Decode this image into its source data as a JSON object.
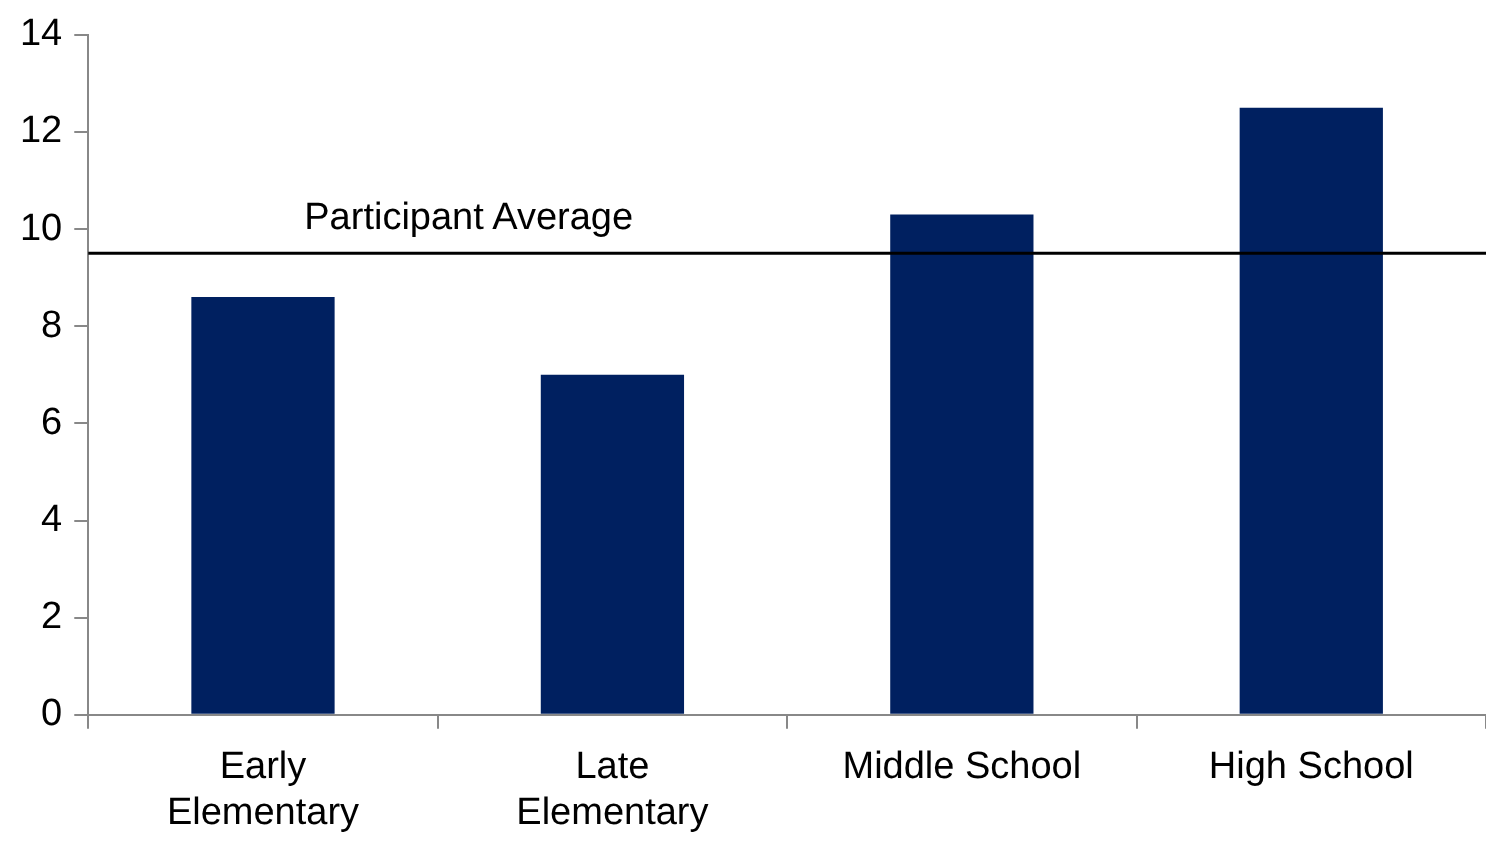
{
  "chart_data": {
    "type": "bar",
    "categories": [
      "Early Elementary",
      "Late Elementary",
      "Middle School",
      "High School"
    ],
    "values": [
      8.6,
      7.0,
      10.3,
      12.5
    ],
    "color": "#002060",
    "ylim": [
      0,
      14
    ],
    "yticks": [
      0,
      2,
      4,
      6,
      8,
      10,
      12,
      14
    ],
    "grid": false,
    "legend": false,
    "ref_lines": [
      {
        "axis": "y",
        "value": 9.5,
        "label": "Participant Average",
        "color": "#000000"
      }
    ]
  }
}
